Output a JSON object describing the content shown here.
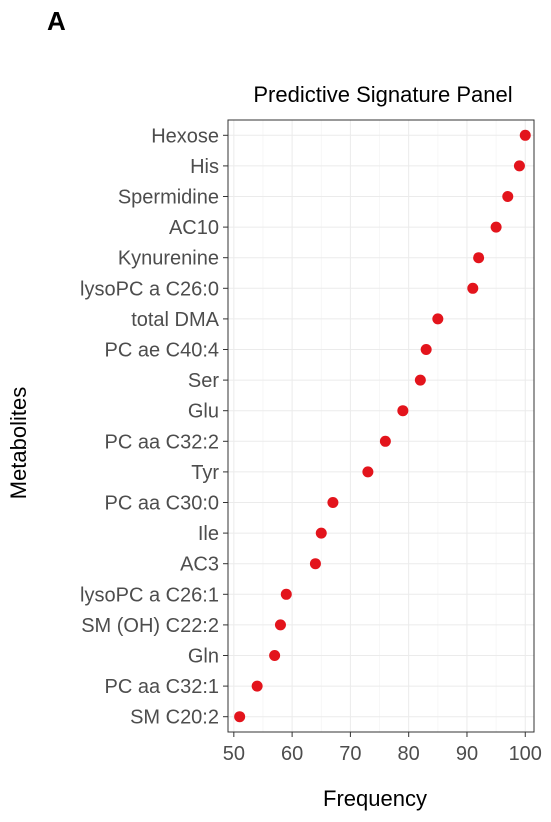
{
  "panel_label": "A",
  "chart_data": {
    "type": "scatter",
    "title": "Predictive Signature Panel",
    "xlabel": "Frequency",
    "ylabel": "Metabolites",
    "xlim": [
      49,
      101.5
    ],
    "xticks": [
      50,
      60,
      70,
      80,
      90,
      100
    ],
    "grid": true,
    "point_color": "#e3141c",
    "categories": [
      "Hexose",
      "His",
      "Spermidine",
      "AC10",
      "Kynurenine",
      "lysoPC a C26:0",
      "total DMA",
      "PC ae C40:4",
      "Ser",
      "Glu",
      "PC aa C32:2",
      "Tyr",
      "PC aa C30:0",
      "Ile",
      "AC3",
      "lysoPC a C26:1",
      "SM (OH) C22:2",
      "Gln",
      "PC aa C32:1",
      "SM C20:2"
    ],
    "values": [
      100,
      99,
      97,
      95,
      92,
      91,
      85,
      83,
      82,
      79,
      76,
      73,
      67,
      65,
      64,
      59,
      58,
      57,
      54,
      51
    ]
  }
}
